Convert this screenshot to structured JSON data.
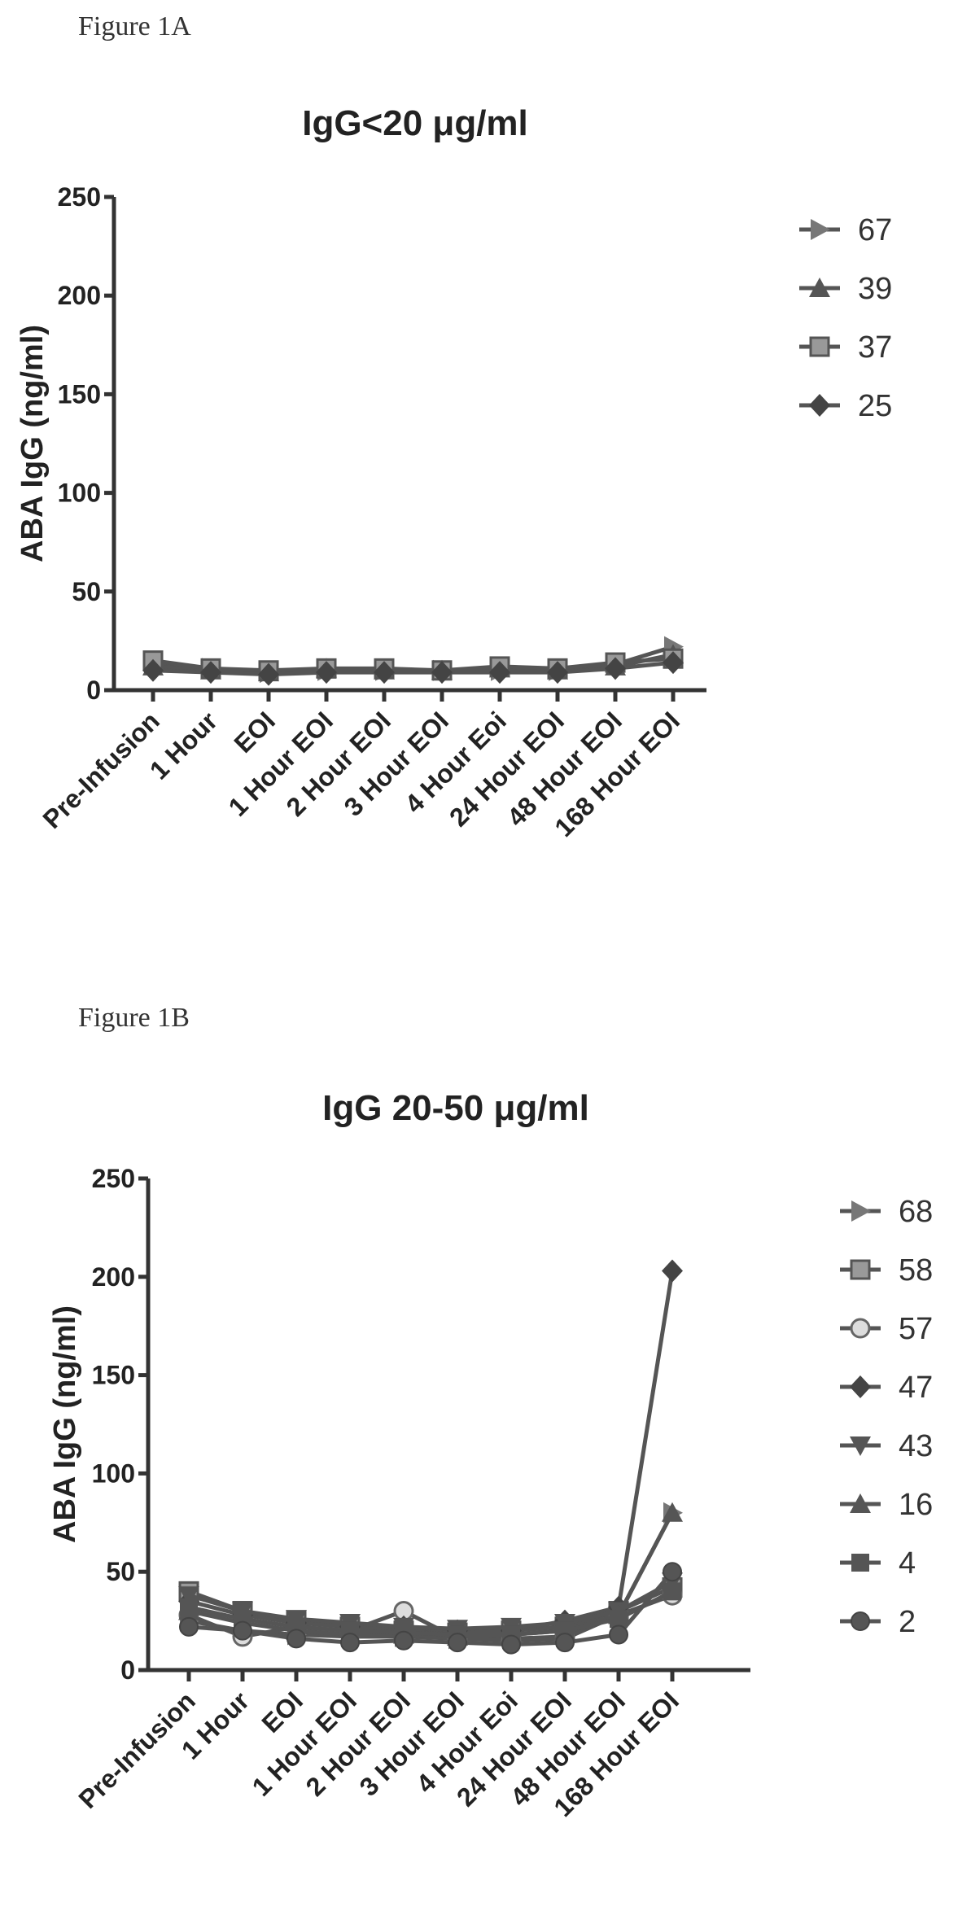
{
  "figures": [
    {
      "label": "Figure 1A"
    },
    {
      "label": "Figure 1B"
    }
  ],
  "chart_data": [
    {
      "type": "line",
      "title": "IgG<20 μg/ml",
      "xlabel": "",
      "ylabel": "ABA IgG (ng/ml)",
      "ylim": [
        0,
        250
      ],
      "yticks": [
        0,
        50,
        100,
        150,
        200,
        250
      ],
      "categories": [
        "Pre-Infusion",
        "1 Hour",
        "EOI",
        "1 Hour EOI",
        "2 Hour EOI",
        "3 Hour EOI",
        "4 Hour Eoi",
        "24 Hour EOI",
        "48 Hour EOI",
        "168 Hour EOI"
      ],
      "legend_position": "right",
      "series": [
        {
          "name": "67",
          "values": [
            14,
            11,
            9,
            10,
            10,
            10,
            10,
            10,
            13,
            22
          ]
        },
        {
          "name": "39",
          "values": [
            12,
            10,
            9,
            11,
            10,
            10,
            11,
            10,
            12,
            18
          ]
        },
        {
          "name": "37",
          "values": [
            15,
            11,
            10,
            11,
            11,
            10,
            12,
            11,
            14,
            16
          ]
        },
        {
          "name": "25",
          "values": [
            10,
            9,
            8,
            9,
            9,
            9,
            9,
            9,
            11,
            14
          ]
        }
      ]
    },
    {
      "type": "line",
      "title": "IgG 20-50 μg/ml",
      "xlabel": "",
      "ylabel": "ABA IgG (ng/ml)",
      "ylim": [
        0,
        250
      ],
      "yticks": [
        0,
        50,
        100,
        150,
        200,
        250
      ],
      "categories": [
        "Pre-Infusion",
        "1 Hour",
        "EOI",
        "1 Hour EOI",
        "2 Hour EOI",
        "3 Hour EOI",
        "4 Hour Eoi",
        "24 Hour EOI",
        "48 Hour EOI",
        "168 Hour EOI"
      ],
      "legend_position": "right",
      "series": [
        {
          "name": "68",
          "values": [
            25,
            20,
            18,
            17,
            17,
            16,
            16,
            17,
            28,
            80
          ]
        },
        {
          "name": "58",
          "values": [
            40,
            30,
            25,
            22,
            20,
            19,
            20,
            22,
            30,
            42
          ]
        },
        {
          "name": "57",
          "values": [
            28,
            17,
            22,
            20,
            30,
            16,
            15,
            16,
            28,
            38
          ]
        },
        {
          "name": "47",
          "values": [
            35,
            28,
            24,
            22,
            22,
            20,
            20,
            25,
            32,
            203
          ]
        },
        {
          "name": "43",
          "values": [
            38,
            30,
            26,
            24,
            22,
            21,
            22,
            24,
            30,
            45
          ]
        },
        {
          "name": "16",
          "values": [
            30,
            24,
            20,
            18,
            18,
            17,
            18,
            20,
            28,
            80
          ]
        },
        {
          "name": "4",
          "values": [
            32,
            26,
            22,
            20,
            19,
            18,
            18,
            20,
            26,
            40
          ]
        },
        {
          "name": "2",
          "values": [
            22,
            20,
            16,
            14,
            15,
            14,
            13,
            14,
            18,
            50
          ]
        }
      ]
    }
  ]
}
